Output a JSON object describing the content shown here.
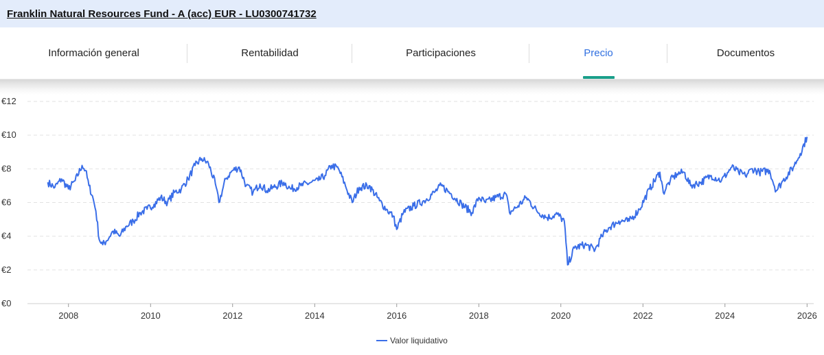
{
  "header": {
    "fund_title": "Franklin Natural Resources Fund - A (acc) EUR - LU0300741732"
  },
  "tabs": [
    {
      "label": "Información general",
      "active": false
    },
    {
      "label": "Rentabilidad",
      "active": false
    },
    {
      "label": "Participaciones",
      "active": false
    },
    {
      "label": "Precio",
      "active": true
    },
    {
      "label": "Documentos",
      "active": false
    }
  ],
  "colors": {
    "accent": "#2f6fe0",
    "tab_underline": "#1a9f8a",
    "line": "#3a6ee8"
  },
  "chart_data": {
    "type": "line",
    "title": "",
    "xlabel": "",
    "ylabel": "",
    "ylim": [
      0,
      12
    ],
    "xlim": [
      "2007-01-01",
      "2026-03-01"
    ],
    "y_ticks": [
      "€0",
      "€2",
      "€4",
      "€6",
      "€8",
      "€10",
      "€12"
    ],
    "x_ticks": [
      "2008",
      "2010",
      "2012",
      "2014",
      "2016",
      "2018",
      "2020",
      "2022",
      "2024",
      "2026"
    ],
    "grid": "horizontal dashed",
    "legend": "bottom-center",
    "series": [
      {
        "name": "Valor liquidativo",
        "x": [
          "2007-07",
          "2007-09",
          "2007-11",
          "2008-01",
          "2008-03",
          "2008-05",
          "2008-06",
          "2008-07",
          "2008-08",
          "2008-09",
          "2008-10",
          "2008-11",
          "2008-12",
          "2009-02",
          "2009-04",
          "2009-06",
          "2009-08",
          "2009-10",
          "2009-12",
          "2010-02",
          "2010-04",
          "2010-06",
          "2010-08",
          "2010-10",
          "2010-12",
          "2011-02",
          "2011-04",
          "2011-06",
          "2011-08",
          "2011-09",
          "2011-11",
          "2012-01",
          "2012-03",
          "2012-05",
          "2012-07",
          "2012-09",
          "2012-11",
          "2013-01",
          "2013-04",
          "2013-06",
          "2013-09",
          "2013-12",
          "2014-02",
          "2014-04",
          "2014-06",
          "2014-08",
          "2014-10",
          "2014-12",
          "2015-02",
          "2015-05",
          "2015-08",
          "2015-10",
          "2015-12",
          "2016-01",
          "2016-03",
          "2016-06",
          "2016-09",
          "2016-12",
          "2017-02",
          "2017-05",
          "2017-08",
          "2017-11",
          "2018-01",
          "2018-03",
          "2018-06",
          "2018-09",
          "2018-10",
          "2018-12",
          "2019-03",
          "2019-06",
          "2019-09",
          "2019-12",
          "2020-02",
          "2020-03",
          "2020-05",
          "2020-08",
          "2020-11",
          "2021-01",
          "2021-03",
          "2021-06",
          "2021-09",
          "2021-12",
          "2022-03",
          "2022-06",
          "2022-07",
          "2022-09",
          "2022-11",
          "2023-01",
          "2023-03",
          "2023-06",
          "2023-09",
          "2023-12",
          "2024-03",
          "2024-05",
          "2024-07",
          "2024-09",
          "2024-11",
          "2025-02",
          "2025-04",
          "2025-06",
          "2025-09",
          "2025-11",
          "2026-01"
        ],
        "values": [
          7.2,
          6.9,
          7.4,
          6.8,
          7.3,
          8.2,
          7.9,
          7.0,
          6.4,
          5.5,
          3.8,
          3.5,
          3.7,
          4.3,
          4.0,
          4.6,
          4.9,
          5.4,
          5.6,
          5.9,
          6.3,
          6.0,
          6.6,
          6.8,
          7.4,
          8.2,
          8.6,
          8.3,
          7.1,
          6.0,
          7.4,
          7.9,
          8.1,
          7.0,
          6.6,
          7.1,
          6.7,
          6.9,
          7.2,
          6.8,
          7.0,
          7.2,
          7.3,
          7.6,
          8.2,
          8.0,
          7.0,
          6.0,
          6.9,
          7.0,
          6.1,
          5.6,
          5.2,
          4.4,
          5.4,
          5.8,
          6.1,
          6.6,
          7.0,
          6.5,
          5.9,
          5.4,
          6.3,
          6.0,
          6.3,
          6.5,
          5.4,
          5.7,
          6.3,
          5.5,
          5.1,
          5.3,
          4.9,
          2.3,
          3.3,
          3.5,
          3.2,
          4.0,
          4.5,
          4.9,
          4.9,
          5.6,
          6.8,
          7.8,
          6.6,
          7.3,
          7.7,
          7.8,
          7.0,
          7.2,
          7.6,
          7.3,
          8.1,
          7.8,
          7.6,
          8.0,
          7.8,
          7.9,
          6.7,
          7.3,
          8.1,
          8.9,
          9.9
        ]
      }
    ]
  }
}
